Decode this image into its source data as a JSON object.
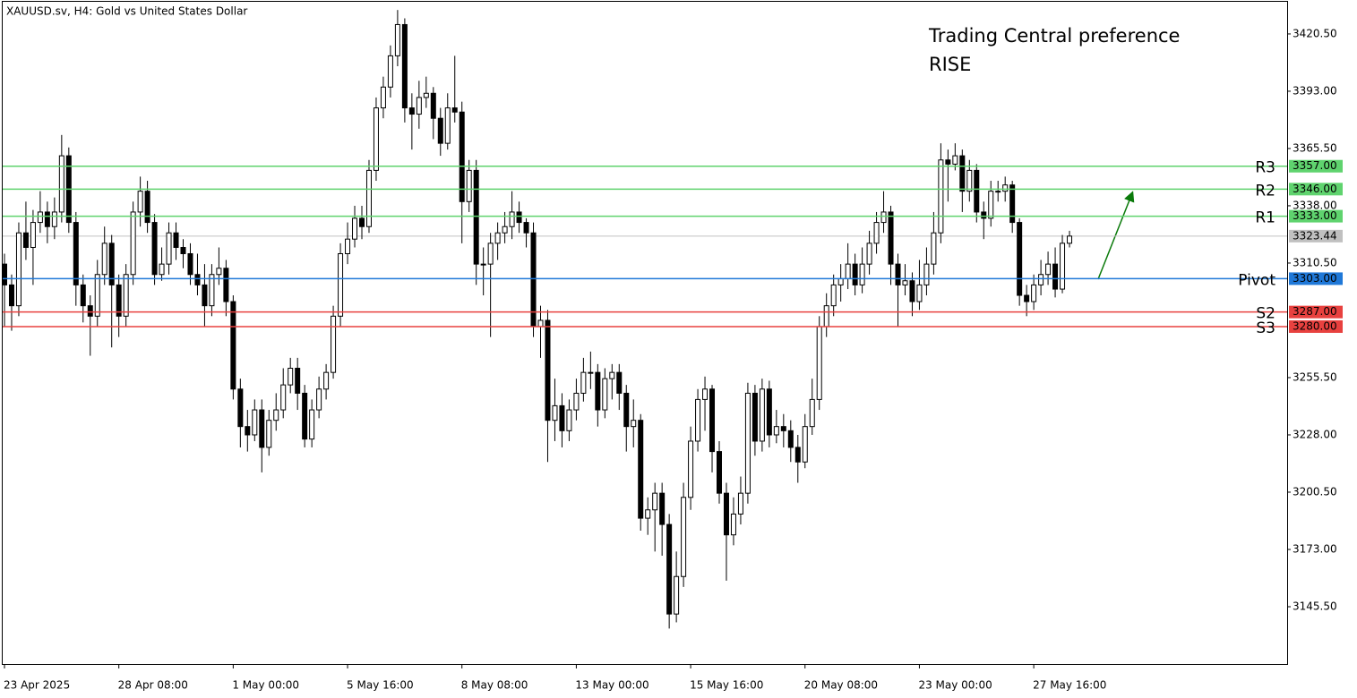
{
  "chart_data": {
    "type": "candlestick",
    "title": "XAUUSD.sv, H4:  Gold vs United States Dollar",
    "annotations": [
      "Trading Central preference",
      "RISE"
    ],
    "categories": [
      "23 Apr 2025",
      null,
      null,
      null,
      null,
      null,
      null,
      null,
      null,
      null,
      null,
      null,
      null,
      null,
      null,
      null,
      "28 Apr 08:00",
      null,
      null,
      null,
      null,
      null,
      null,
      null,
      null,
      null,
      null,
      null,
      null,
      null,
      null,
      null,
      "1 May 00:00",
      null,
      null,
      null,
      null,
      null,
      null,
      null,
      null,
      null,
      null,
      null,
      null,
      null,
      null,
      null,
      "5 May 16:00",
      null,
      null,
      null,
      null,
      null,
      null,
      null,
      null,
      null,
      null,
      null,
      null,
      null,
      null,
      null,
      "8 May 08:00",
      null,
      null,
      null,
      null,
      null,
      null,
      null,
      null,
      null,
      null,
      null,
      null,
      null,
      null,
      null,
      "13 May 00:00",
      null,
      null,
      null,
      null,
      null,
      null,
      null,
      null,
      null,
      null,
      null,
      null,
      null,
      null,
      null,
      "15 May 16:00",
      null,
      null,
      null,
      null,
      null,
      null,
      null,
      null,
      null,
      null,
      null,
      null,
      null,
      null,
      null,
      "20 May 08:00",
      null,
      null,
      null,
      null,
      null,
      null,
      null,
      null,
      null,
      null,
      null,
      null,
      null,
      null,
      null,
      "23 May 00:00",
      null,
      null,
      null,
      null,
      null,
      null,
      null,
      null,
      null,
      null,
      null,
      null,
      null,
      null,
      null,
      "27 May 16:00",
      null,
      null,
      null,
      null,
      null
    ],
    "open": [
      3310,
      3300,
      3290,
      3325,
      3318,
      3330,
      3335,
      3328,
      3335,
      3362,
      3330,
      3300,
      3290,
      3285,
      3305,
      3320,
      3300,
      3285,
      3305,
      3335,
      3345,
      3330,
      3305,
      3310,
      3325,
      3318,
      3315,
      3305,
      3300,
      3290,
      3305,
      3308,
      3292,
      3250,
      3232,
      3228,
      3240,
      3222,
      3235,
      3240,
      3252,
      3260,
      3248,
      3226,
      3240,
      3250,
      3258,
      3285,
      3315,
      3322,
      3332,
      3328,
      3355,
      3385,
      3395,
      3410,
      3425,
      3385,
      3382,
      3390,
      3392,
      3380,
      3368,
      3385,
      3383,
      3340,
      3355,
      3310,
      3310,
      3320,
      3325,
      3328,
      3335,
      3330,
      3325,
      3280,
      3283,
      3235,
      3242,
      3230,
      3240,
      3248,
      3258,
      3258,
      3240,
      3255,
      3258,
      3248,
      3232,
      3235,
      3188,
      3192,
      3200,
      3185,
      3142,
      3160,
      3198,
      3225,
      3245,
      3250,
      3220,
      3200,
      3180,
      3190,
      3200,
      3248,
      3225,
      3250,
      3228,
      3232,
      3230,
      3222,
      3215,
      3232,
      3245,
      3280,
      3290,
      3300,
      3303,
      3310,
      3300,
      3310,
      3320,
      3330,
      3335,
      3310,
      3300,
      3302,
      3292,
      3300,
      3310,
      3325,
      3360,
      3358,
      3362,
      3345,
      3355,
      3335,
      3332,
      3345,
      3345,
      3348,
      3330,
      3295,
      3292,
      3300,
      3305,
      3310,
      3298,
      3320
    ],
    "high": [
      3315,
      3305,
      3330,
      3340,
      3336,
      3345,
      3340,
      3342,
      3372,
      3366,
      3335,
      3305,
      3295,
      3312,
      3328,
      3324,
      3305,
      3310,
      3340,
      3352,
      3350,
      3334,
      3318,
      3330,
      3330,
      3322,
      3320,
      3315,
      3310,
      3310,
      3318,
      3312,
      3295,
      3255,
      3240,
      3245,
      3245,
      3240,
      3248,
      3260,
      3265,
      3265,
      3252,
      3245,
      3256,
      3262,
      3290,
      3320,
      3330,
      3338,
      3338,
      3360,
      3390,
      3400,
      3415,
      3432,
      3428,
      3392,
      3398,
      3400,
      3395,
      3385,
      3392,
      3410,
      3388,
      3360,
      3360,
      3318,
      3325,
      3330,
      3335,
      3345,
      3340,
      3332,
      3330,
      3290,
      3288,
      3255,
      3248,
      3245,
      3255,
      3265,
      3268,
      3262,
      3260,
      3262,
      3262,
      3252,
      3245,
      3238,
      3198,
      3205,
      3205,
      3190,
      3172,
      3205,
      3232,
      3250,
      3256,
      3252,
      3225,
      3205,
      3198,
      3208,
      3253,
      3252,
      3255,
      3254,
      3240,
      3238,
      3235,
      3228,
      3238,
      3255,
      3285,
      3296,
      3305,
      3310,
      3320,
      3315,
      3318,
      3326,
      3335,
      3345,
      3338,
      3315,
      3310,
      3306,
      3312,
      3318,
      3335,
      3368,
      3365,
      3368,
      3365,
      3360,
      3358,
      3340,
      3350,
      3350,
      3352,
      3350,
      3332,
      3300,
      3305,
      3312,
      3316,
      3318,
      3324,
      3326
    ],
    "low": [
      3280,
      3278,
      3285,
      3312,
      3300,
      3325,
      3320,
      3322,
      3330,
      3325,
      3290,
      3282,
      3266,
      3280,
      3300,
      3270,
      3275,
      3280,
      3300,
      3328,
      3325,
      3300,
      3302,
      3305,
      3312,
      3308,
      3300,
      3295,
      3280,
      3285,
      3300,
      3285,
      3245,
      3222,
      3220,
      3225,
      3210,
      3218,
      3230,
      3236,
      3248,
      3240,
      3222,
      3222,
      3236,
      3245,
      3255,
      3280,
      3310,
      3318,
      3322,
      3325,
      3350,
      3380,
      3390,
      3405,
      3378,
      3365,
      3375,
      3385,
      3370,
      3362,
      3365,
      3378,
      3320,
      3335,
      3300,
      3295,
      3275,
      3312,
      3320,
      3322,
      3325,
      3318,
      3275,
      3265,
      3215,
      3225,
      3222,
      3225,
      3235,
      3244,
      3250,
      3232,
      3236,
      3245,
      3240,
      3220,
      3222,
      3182,
      3180,
      3172,
      3170,
      3135,
      3138,
      3155,
      3192,
      3220,
      3230,
      3210,
      3195,
      3158,
      3175,
      3185,
      3195,
      3218,
      3220,
      3222,
      3224,
      3222,
      3215,
      3205,
      3212,
      3228,
      3240,
      3275,
      3285,
      3292,
      3298,
      3295,
      3296,
      3305,
      3315,
      3325,
      3300,
      3280,
      3295,
      3285,
      3288,
      3295,
      3305,
      3320,
      3340,
      3355,
      3335,
      3340,
      3330,
      3322,
      3328,
      3340,
      3340,
      3325,
      3290,
      3285,
      3288,
      3295,
      3300,
      3294,
      3296,
      3318
    ],
    "close": [
      3300,
      3290,
      3325,
      3318,
      3330,
      3335,
      3328,
      3335,
      3362,
      3330,
      3300,
      3290,
      3285,
      3305,
      3320,
      3300,
      3285,
      3305,
      3335,
      3345,
      3330,
      3305,
      3310,
      3325,
      3318,
      3315,
      3305,
      3300,
      3290,
      3305,
      3308,
      3292,
      3250,
      3232,
      3228,
      3240,
      3222,
      3235,
      3240,
      3252,
      3260,
      3248,
      3226,
      3240,
      3250,
      3258,
      3285,
      3315,
      3322,
      3332,
      3328,
      3355,
      3385,
      3395,
      3410,
      3425,
      3385,
      3382,
      3390,
      3392,
      3380,
      3368,
      3385,
      3383,
      3340,
      3355,
      3310,
      3310,
      3320,
      3325,
      3328,
      3335,
      3330,
      3325,
      3280,
      3283,
      3235,
      3242,
      3230,
      3240,
      3248,
      3258,
      3258,
      3240,
      3255,
      3258,
      3248,
      3232,
      3235,
      3188,
      3192,
      3200,
      3185,
      3142,
      3160,
      3198,
      3225,
      3245,
      3250,
      3220,
      3200,
      3180,
      3190,
      3200,
      3248,
      3225,
      3250,
      3228,
      3232,
      3230,
      3222,
      3215,
      3232,
      3245,
      3280,
      3290,
      3300,
      3303,
      3310,
      3300,
      3310,
      3320,
      3330,
      3335,
      3310,
      3300,
      3302,
      3292,
      3300,
      3310,
      3325,
      3360,
      3358,
      3362,
      3345,
      3355,
      3335,
      3332,
      3345,
      3345,
      3348,
      3330,
      3295,
      3292,
      3300,
      3305,
      3310,
      3298,
      3320,
      3323.44
    ],
    "last_price": 3323.44,
    "levels": [
      {
        "name": "R3",
        "value": 3357,
        "label": "3357.00",
        "color": "#5fd36e"
      },
      {
        "name": "R2",
        "value": 3346,
        "label": "3346.00",
        "color": "#5fd36e"
      },
      {
        "name": "R1",
        "value": 3333,
        "label": "3333.00",
        "color": "#5fd36e"
      },
      {
        "name": "Pivot",
        "value": 3303,
        "label": "3303.00",
        "color": "#1f78d8"
      },
      {
        "name": "S2",
        "value": 3287,
        "label": "3287.00",
        "color": "#e8413f"
      },
      {
        "name": "S3",
        "value": 3280,
        "label": "3280.00",
        "color": "#e8413f"
      }
    ],
    "ylim": [
      3118,
      3436.8
    ],
    "yticks": [
      {
        "value": 3420.5,
        "label": "3420.50"
      },
      {
        "value": 3393,
        "label": "3393.00"
      },
      {
        "value": 3365.5,
        "label": "3365.50"
      },
      {
        "value": 3338,
        "label": "3338.00"
      },
      {
        "value": 3310.5,
        "label": "3310.50"
      },
      {
        "value": 3255.5,
        "label": "3255.50"
      },
      {
        "value": 3228,
        "label": "3228.00"
      },
      {
        "value": 3200.5,
        "label": "3200.50"
      },
      {
        "value": 3173,
        "label": "3173.00"
      },
      {
        "value": 3145.5,
        "label": "3145.50"
      }
    ],
    "up_color": "#ffffff",
    "down_color": "#000000",
    "annotation_color": "#5fd36e",
    "last_color": "#c0c0c0"
  }
}
